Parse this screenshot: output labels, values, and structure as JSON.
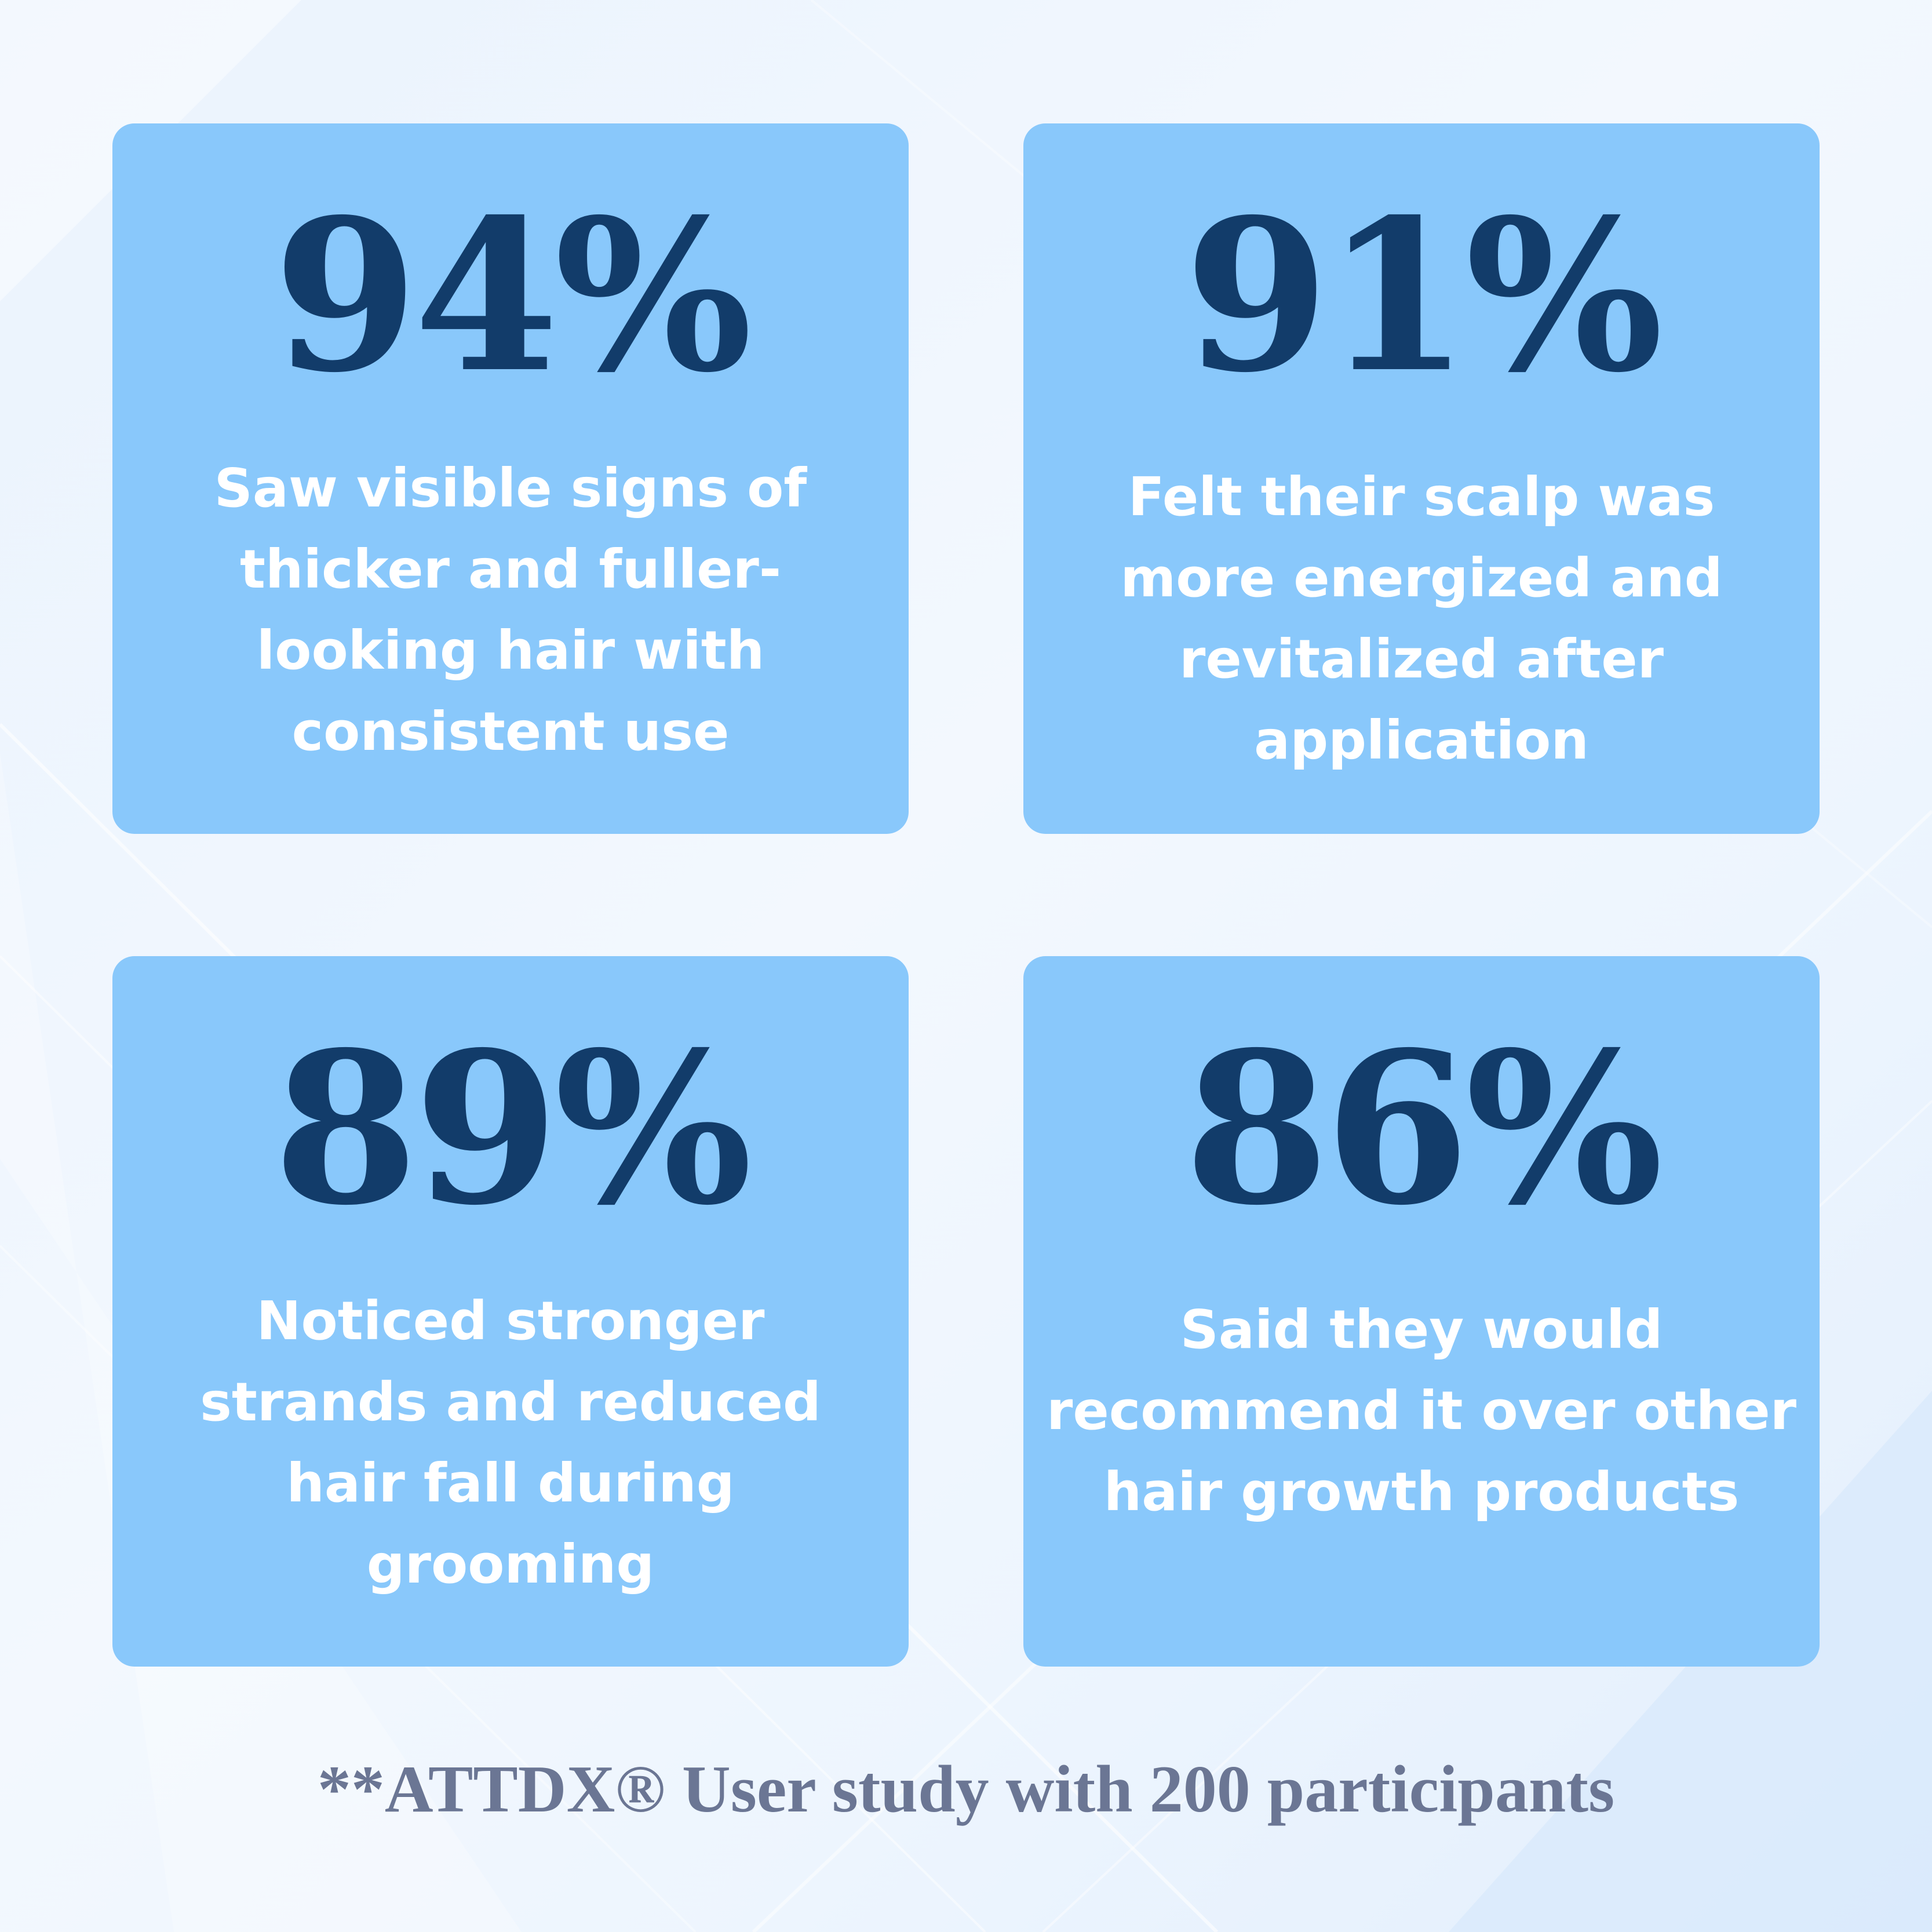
{
  "stats": [
    {
      "value": "94%",
      "description": "Saw visible signs of thicker and fuller-looking hair with consistent use"
    },
    {
      "value": "91%",
      "description": "Felt their scalp was more energized and revitalized after application"
    },
    {
      "value": "89%",
      "description": "Noticed stronger strands and reduced hair fall during grooming"
    },
    {
      "value": "86%",
      "description": "Said they would recommend it over other hair growth products"
    }
  ],
  "footnote": "**ATTDX® User study with 200 participants",
  "colors": {
    "background": "#eef5fd",
    "card": "#89c8fb",
    "value_text": "#123c6a",
    "description_text": "#ffffff",
    "footnote_text": "#6b7694"
  }
}
